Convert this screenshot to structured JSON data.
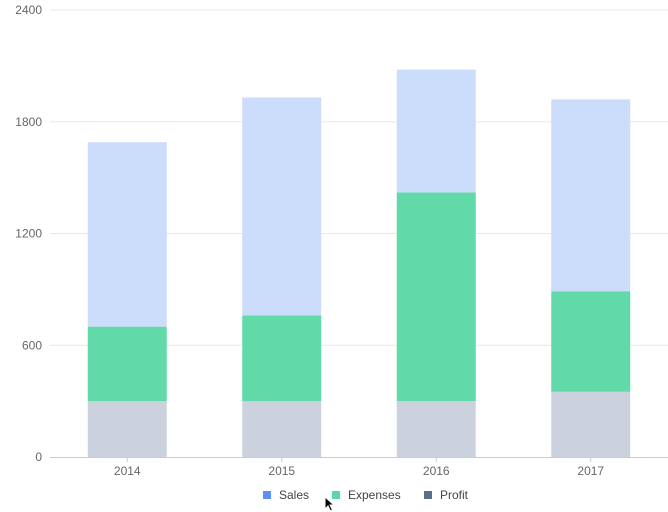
{
  "chart_data": {
    "type": "bar",
    "stacked": true,
    "categories": [
      "2014",
      "2015",
      "2016",
      "2017"
    ],
    "series": [
      {
        "name": "Profit",
        "values": [
          300,
          300,
          300,
          350
        ],
        "color": "#cbd2de",
        "legend_color": "#5a6f8c"
      },
      {
        "name": "Expenses",
        "values": [
          400,
          460,
          1120,
          540
        ],
        "color": "#61d9a9",
        "legend_color": "#5ad8a6"
      },
      {
        "name": "Sales",
        "values": [
          990,
          1170,
          660,
          1030
        ],
        "color": "#ccdcfb",
        "legend_color": "#5b8ff9"
      }
    ],
    "legend_order": [
      "Sales",
      "Expenses",
      "Profit"
    ],
    "ylim": [
      0,
      2400
    ],
    "yticks": [
      "0",
      "600",
      "1200",
      "1800",
      "2400"
    ],
    "grid": true,
    "legend_position": "bottom"
  }
}
